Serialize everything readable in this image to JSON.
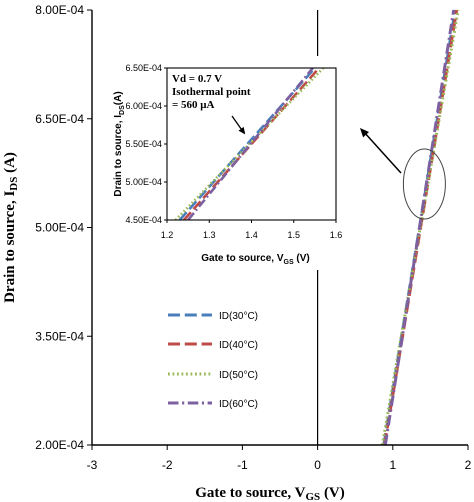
{
  "chart_data": [
    {
      "type": "line",
      "xlabel": "Gate to source, V",
      "xlabel_sub": "GS",
      "xlabel_unit": " (V)",
      "ylabel": "Drain to source, I",
      "ylabel_sub": "DS",
      "ylabel_unit": " (A)",
      "xlim": [
        -3,
        2
      ],
      "ylim": [
        0.0002,
        0.0008
      ],
      "x_ticks": [
        -3,
        -2,
        -1,
        0,
        1,
        2
      ],
      "x_tick_labels": [
        "-3",
        "-2",
        "-1",
        "0",
        "1",
        "2"
      ],
      "y_ticks": [
        0.0002,
        0.00035,
        0.0005,
        0.00065,
        0.0008
      ],
      "y_tick_labels": [
        "2.00E-04",
        "3.50E-04",
        "5.00E-04",
        "6.50E-04",
        "8.00E-04"
      ],
      "grid": false,
      "legend_position": "lower-center",
      "series": [
        {
          "name": "ID(30°C)",
          "color": "#4a7ebb",
          "dash": "dash",
          "x": [
            0.88,
            1.83
          ],
          "y": [
            0.0002,
            0.0008
          ]
        },
        {
          "name": "ID(40°C)",
          "color": "#be4b48",
          "dash": "dash",
          "x": [
            0.89,
            1.85
          ],
          "y": [
            0.0002,
            0.0008
          ]
        },
        {
          "name": "ID(50°C)",
          "color": "#98b954",
          "dash": "dot",
          "x": [
            0.86,
            1.87
          ],
          "y": [
            0.0002,
            0.0008
          ]
        },
        {
          "name": "ID(60°C)",
          "color": "#7d60a0",
          "dash": "dashdot",
          "x": [
            0.9,
            1.81
          ],
          "y": [
            0.0002,
            0.0008
          ]
        }
      ]
    },
    {
      "type": "line",
      "xlabel": "Gate to source, V",
      "xlabel_sub": "GS",
      "xlabel_unit": " (V)",
      "ylabel": "Drain to source, I",
      "ylabel_sub": "DS",
      "ylabel_unit": "(A)",
      "xlim": [
        1.2,
        1.6
      ],
      "ylim": [
        0.00045,
        0.00065
      ],
      "x_ticks": [
        1.2,
        1.3,
        1.4,
        1.5,
        1.6
      ],
      "x_tick_labels": [
        "1.2",
        "1.3",
        "1.4",
        "1.5",
        "1.6"
      ],
      "y_ticks": [
        0.00045,
        0.0005,
        0.00055,
        0.0006,
        0.00065
      ],
      "y_tick_labels": [
        "4.50E-04",
        "5.00E-04",
        "5.50E-04",
        "6.00E-04",
        "6.50E-04"
      ],
      "annotation_lines": [
        "Vd = 0.7 V",
        "Isothermal point",
        "= 560 μA"
      ],
      "series": [
        {
          "name": "ID(30°C)",
          "color": "#4a7ebb",
          "dash": "dash",
          "x": [
            1.23,
            1.55
          ],
          "y": [
            0.00045,
            0.00065
          ]
        },
        {
          "name": "ID(40°C)",
          "color": "#be4b48",
          "dash": "dash",
          "x": [
            1.24,
            1.56
          ],
          "y": [
            0.00045,
            0.00065
          ]
        },
        {
          "name": "ID(50°C)",
          "color": "#98b954",
          "dash": "dot",
          "x": [
            1.22,
            1.57
          ],
          "y": [
            0.00045,
            0.00065
          ]
        },
        {
          "name": "ID(60°C)",
          "color": "#7d60a0",
          "dash": "dashdot",
          "x": [
            1.25,
            1.545
          ],
          "y": [
            0.00045,
            0.00065
          ]
        }
      ]
    }
  ]
}
